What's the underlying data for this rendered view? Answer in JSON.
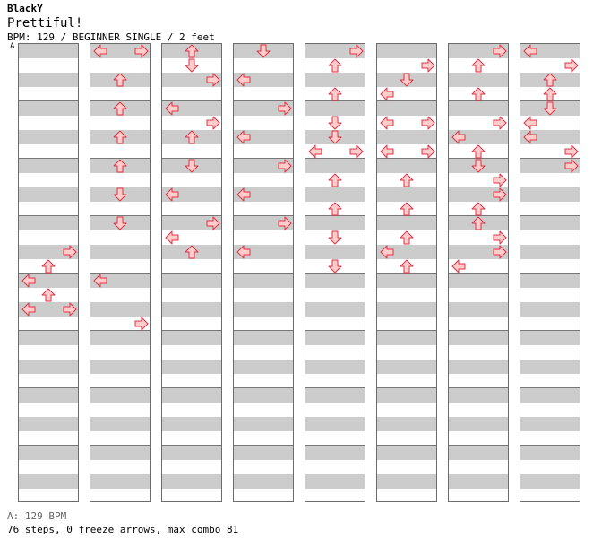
{
  "header": {
    "artist": "BlackY",
    "title": "Prettiful!",
    "info": "BPM: 129 / BEGINNER SINGLE / 2 feet"
  },
  "bpm_marker": {
    "label": "A"
  },
  "colors": {
    "arrow_fill": "#ffcccc",
    "arrow_stroke": "#dd3344",
    "stripe": "#cccccc",
    "measure_line": "#777777"
  },
  "footer": {
    "bpm_line": "A: 129 BPM",
    "summary": "76 steps, 0 freeze arrows, max combo 81"
  },
  "chart": {
    "columns": [
      {
        "steps": [
          [
            28,
            "R"
          ],
          [
            30,
            "U"
          ],
          [
            32,
            "L"
          ],
          [
            34,
            "U"
          ],
          [
            36,
            "L"
          ],
          [
            36,
            "R"
          ]
        ]
      },
      {
        "steps": [
          [
            0,
            "L"
          ],
          [
            0,
            "R"
          ],
          [
            4,
            "U"
          ],
          [
            8,
            "U"
          ],
          [
            12,
            "U"
          ],
          [
            16,
            "U"
          ],
          [
            20,
            "D"
          ],
          [
            24,
            "D"
          ],
          [
            32,
            "L"
          ],
          [
            38,
            "R"
          ]
        ]
      },
      {
        "steps": [
          [
            0,
            "U"
          ],
          [
            2,
            "D"
          ],
          [
            4,
            "R"
          ],
          [
            8,
            "L"
          ],
          [
            10,
            "R"
          ],
          [
            12,
            "U"
          ],
          [
            16,
            "D"
          ],
          [
            20,
            "L"
          ],
          [
            24,
            "R"
          ],
          [
            26,
            "L"
          ],
          [
            28,
            "U"
          ]
        ]
      },
      {
        "steps": [
          [
            0,
            "D"
          ],
          [
            4,
            "L"
          ],
          [
            8,
            "R"
          ],
          [
            12,
            "L"
          ],
          [
            16,
            "R"
          ],
          [
            20,
            "L"
          ],
          [
            24,
            "R"
          ],
          [
            28,
            "L"
          ]
        ]
      },
      {
        "steps": [
          [
            0,
            "R"
          ],
          [
            2,
            "U"
          ],
          [
            6,
            "U"
          ],
          [
            10,
            "D"
          ],
          [
            12,
            "D"
          ],
          [
            14,
            "L"
          ],
          [
            14,
            "R"
          ],
          [
            18,
            "U"
          ],
          [
            22,
            "U"
          ],
          [
            26,
            "D"
          ],
          [
            30,
            "D"
          ]
        ]
      },
      {
        "steps": [
          [
            2,
            "R"
          ],
          [
            4,
            "D"
          ],
          [
            6,
            "L"
          ],
          [
            10,
            "L"
          ],
          [
            10,
            "R"
          ],
          [
            14,
            "L"
          ],
          [
            14,
            "R"
          ],
          [
            18,
            "U"
          ],
          [
            22,
            "U"
          ],
          [
            26,
            "U"
          ],
          [
            28,
            "L"
          ],
          [
            30,
            "U"
          ]
        ]
      },
      {
        "steps": [
          [
            0,
            "R"
          ],
          [
            2,
            "U"
          ],
          [
            6,
            "U"
          ],
          [
            10,
            "R"
          ],
          [
            12,
            "L"
          ],
          [
            14,
            "U"
          ],
          [
            16,
            "D"
          ],
          [
            18,
            "R"
          ],
          [
            20,
            "R"
          ],
          [
            22,
            "U"
          ],
          [
            24,
            "U"
          ],
          [
            26,
            "R"
          ],
          [
            28,
            "R"
          ],
          [
            30,
            "L"
          ]
        ]
      },
      {
        "steps": [
          [
            0,
            "L"
          ],
          [
            2,
            "R"
          ],
          [
            4,
            "U"
          ],
          [
            6,
            "U"
          ],
          [
            8,
            "D"
          ],
          [
            10,
            "L"
          ],
          [
            12,
            "L"
          ],
          [
            14,
            "R"
          ],
          [
            16,
            "R"
          ]
        ]
      }
    ]
  }
}
